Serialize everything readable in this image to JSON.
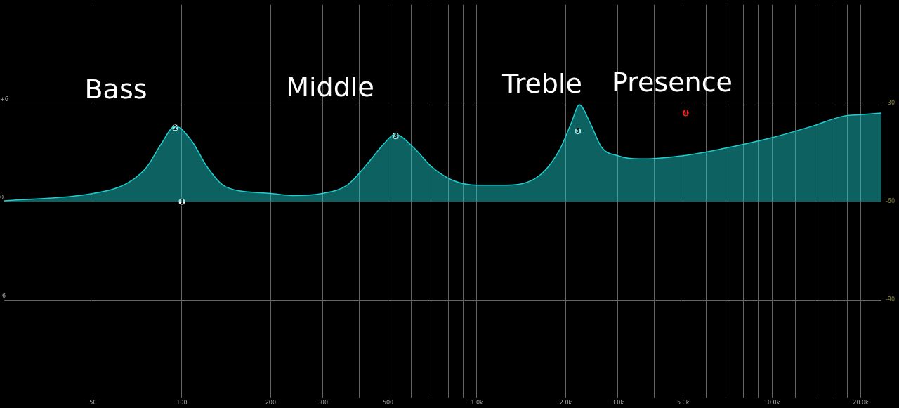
{
  "chart_data": {
    "type": "area",
    "log": "x",
    "grid": true,
    "xlim": [
      25,
      23500
    ],
    "xticks": [
      50,
      100,
      200,
      300,
      {
        "value": 400,
        "label": null
      },
      500,
      {
        "value": 600,
        "label": null
      },
      {
        "value": 700,
        "label": null
      },
      {
        "value": 800,
        "label": null
      },
      {
        "value": 900,
        "label": null
      },
      {
        "value": 1000,
        "label": "1.0k"
      },
      {
        "value": 2000,
        "label": "2.0k"
      },
      {
        "value": 3000,
        "label": "3.0k"
      },
      {
        "value": 4000,
        "label": null
      },
      {
        "value": 5000,
        "label": "5.0k"
      },
      {
        "value": 6000,
        "label": null
      },
      {
        "value": 7000,
        "label": null
      },
      {
        "value": 8000,
        "label": null
      },
      {
        "value": 9000,
        "label": null
      },
      {
        "value": 10000,
        "label": "10.0k"
      },
      {
        "value": 12000,
        "label": null
      },
      {
        "value": 14000,
        "label": null
      },
      {
        "value": 16000,
        "label": null
      },
      {
        "value": 18000,
        "label": null
      },
      {
        "value": 20000,
        "label": "20.0k"
      }
    ],
    "ylim": [
      -12,
      12
    ],
    "yticks": [
      {
        "value": 6,
        "label": "+6"
      },
      0,
      -6
    ],
    "y2lim": [
      -120,
      0
    ],
    "y2ticks": [
      -30,
      -60,
      -90
    ],
    "series": [
      {
        "color": "#1ecfcf",
        "x": [
          25,
          50,
          65,
          76,
          85,
          95,
          108,
          122,
          141,
          200,
          237,
          300,
          363,
          425,
          483,
          528,
          610,
          705,
          828,
          1000,
          1214,
          1590,
          1900,
          2090,
          2225,
          2420,
          2650,
          3000,
          3570,
          5000,
          6700,
          10000,
          13700,
          17400,
          20000,
          23500
        ],
        "values": [
          0.05,
          0.5,
          1.1,
          2.1,
          3.5,
          4.6,
          3.7,
          2.1,
          0.9,
          0.5,
          0.37,
          0.5,
          1.0,
          2.3,
          3.5,
          4.1,
          3.3,
          2.1,
          1.3,
          1.0,
          1.0,
          1.45,
          3.1,
          4.8,
          5.9,
          4.8,
          3.3,
          2.8,
          2.6,
          2.8,
          3.2,
          3.9,
          4.6,
          5.2,
          5.3,
          5.4
        ]
      },
      {
        "type": "scatter",
        "marker": "circle",
        "x": [
          100,
          95,
          530,
          5100,
          2200
        ],
        "values": [
          0,
          4.5,
          4.0,
          5.4,
          4.3
        ],
        "colors": [
          "#ffffff",
          "#ffffff",
          "#ffffff",
          "#ff2020",
          "#ffffff"
        ]
      }
    ],
    "annotations": [
      "Bass",
      "Middle",
      "Treble",
      "Presence",
      {
        "text": "1",
        "x": 100,
        "y": 0
      },
      {
        "text": "2",
        "x": 95,
        "y": 4.5
      },
      {
        "text": "3",
        "x": 530,
        "y": 4.0
      },
      {
        "text": "4",
        "x": 5100,
        "y": 5.4
      },
      {
        "text": "5",
        "x": 2200,
        "y": 4.3
      }
    ]
  }
}
